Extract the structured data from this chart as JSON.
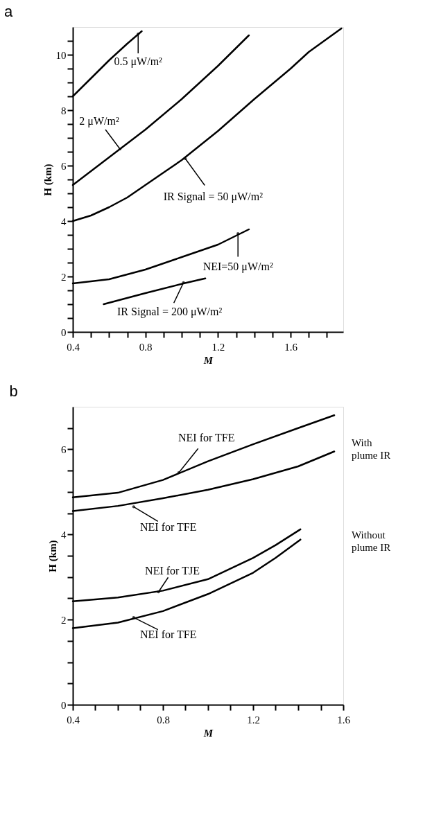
{
  "chart_data": [
    {
      "type": "line",
      "title": "a",
      "xlabel": "M",
      "ylabel": "H (km)",
      "xlim": [
        0.4,
        1.89
      ],
      "ylim": [
        0,
        11
      ],
      "xticks": [
        0.4,
        {
          "value": 0.5,
          "label": null
        },
        {
          "value": 0.6,
          "label": null
        },
        {
          "value": 0.7,
          "label": null
        },
        0.8,
        {
          "value": 0.9,
          "label": null
        },
        {
          "value": 1.0,
          "label": null
        },
        {
          "value": 1.1,
          "label": null
        },
        1.2,
        {
          "value": 1.3,
          "label": null
        },
        {
          "value": 1.4,
          "label": null
        },
        {
          "value": 1.5,
          "label": null
        },
        1.6,
        {
          "value": 1.7,
          "label": null
        },
        {
          "value": 1.8,
          "label": null
        }
      ],
      "yticks": [
        0,
        {
          "value": 0.5,
          "label": null
        },
        {
          "value": 1,
          "label": null
        },
        {
          "value": 1.5,
          "label": null
        },
        2,
        {
          "value": 2.5,
          "label": null
        },
        {
          "value": 3,
          "label": null
        },
        {
          "value": 3.5,
          "label": null
        },
        4,
        {
          "value": 4.5,
          "label": null
        },
        {
          "value": 5,
          "label": null
        },
        {
          "value": 5.5,
          "label": null
        },
        6,
        {
          "value": 6.5,
          "label": null
        },
        {
          "value": 7,
          "label": null
        },
        {
          "value": 7.5,
          "label": null
        },
        8,
        {
          "value": 8.5,
          "label": null
        },
        {
          "value": 9,
          "label": null
        },
        {
          "value": 9.5,
          "label": null
        },
        10,
        {
          "value": 10.5,
          "label": null
        }
      ],
      "grid": false,
      "marker": "none",
      "line_style": "solid",
      "series": [
        {
          "color": "#000000",
          "x": [
            0.4,
            0.5,
            0.6,
            0.7,
            0.78
          ],
          "values": [
            8.5,
            9.15,
            9.8,
            10.4,
            10.85
          ]
        },
        {
          "color": "#000000",
          "x": [
            0.4,
            0.6,
            0.8,
            1.0,
            1.2,
            1.37
          ],
          "values": [
            5.3,
            6.3,
            7.3,
            8.4,
            9.6,
            10.7
          ]
        },
        {
          "color": "#000000",
          "x": [
            0.4,
            0.5,
            0.6,
            0.7,
            0.8,
            0.9,
            1.0,
            1.2,
            1.4,
            1.6,
            1.7,
            1.88
          ],
          "values": [
            4.0,
            4.2,
            4.5,
            4.85,
            5.3,
            5.75,
            6.2,
            7.25,
            8.4,
            9.5,
            10.1,
            10.95
          ]
        },
        {
          "color": "#000000",
          "x": [
            0.4,
            0.6,
            0.8,
            1.0,
            1.2,
            1.37
          ],
          "values": [
            1.75,
            1.9,
            2.25,
            2.7,
            3.15,
            3.7
          ]
        },
        {
          "color": "#000000",
          "x": [
            0.57,
            0.8,
            1.01,
            1.13
          ],
          "values": [
            1.0,
            1.4,
            1.75,
            1.93
          ]
        }
      ],
      "annotations": [
        {
          "text": "0.5 μW/m²",
          "x": 0.76,
          "y": 10.75
        },
        {
          "text": "2 μW/m²",
          "x": 0.66,
          "y": 6.6
        },
        {
          "text": "IR Signal = 50 μW/m²",
          "x": 1.02,
          "y": 6.25
        },
        {
          "text": "NEI=50 μW/m²",
          "x": 1.31,
          "y": 3.55
        },
        {
          "text": "IR Signal = 200 μW/m²",
          "x": 1.01,
          "y": 1.78
        }
      ]
    },
    {
      "type": "line",
      "title": "b",
      "xlabel": "M",
      "ylabel": "H (km)",
      "xlim": [
        0.4,
        1.6
      ],
      "ylim": [
        0,
        7
      ],
      "xticks": [
        0.4,
        {
          "value": 0.5,
          "label": null
        },
        {
          "value": 0.6,
          "label": null
        },
        {
          "value": 0.7,
          "label": null
        },
        0.8,
        {
          "value": 0.9,
          "label": null
        },
        {
          "value": 1.0,
          "label": null
        },
        {
          "value": 1.1,
          "label": null
        },
        1.2,
        {
          "value": 1.3,
          "label": null
        },
        {
          "value": 1.4,
          "label": null
        },
        {
          "value": 1.5,
          "label": null
        },
        1.6
      ],
      "yticks": [
        0,
        {
          "value": 0.5,
          "label": null
        },
        {
          "value": 1,
          "label": null
        },
        {
          "value": 1.5,
          "label": null
        },
        2,
        {
          "value": 2.5,
          "label": null
        },
        {
          "value": 3,
          "label": null
        },
        {
          "value": 3.5,
          "label": null
        },
        4,
        {
          "value": 4.5,
          "label": null
        },
        {
          "value": 5,
          "label": null
        },
        {
          "value": 5.5,
          "label": null
        },
        6,
        {
          "value": 6.5,
          "label": null
        }
      ],
      "grid": false,
      "marker": "none",
      "line_style": "solid",
      "series": [
        {
          "color": "#000000",
          "x": [
            0.4,
            0.6,
            0.8,
            1.0,
            1.2,
            1.4,
            1.56
          ],
          "values": [
            4.87,
            4.98,
            5.28,
            5.72,
            6.12,
            6.5,
            6.8
          ]
        },
        {
          "color": "#000000",
          "x": [
            0.4,
            0.6,
            0.8,
            1.0,
            1.2,
            1.4,
            1.56
          ],
          "values": [
            4.55,
            4.67,
            4.85,
            5.05,
            5.3,
            5.6,
            5.95
          ]
        },
        {
          "color": "#000000",
          "x": [
            0.4,
            0.6,
            0.8,
            1.0,
            1.2,
            1.3,
            1.41
          ],
          "values": [
            2.43,
            2.52,
            2.68,
            2.95,
            3.45,
            3.75,
            4.12
          ]
        },
        {
          "color": "#000000",
          "x": [
            0.4,
            0.6,
            0.8,
            1.0,
            1.2,
            1.3,
            1.41
          ],
          "values": [
            1.8,
            1.93,
            2.2,
            2.6,
            3.1,
            3.45,
            3.88
          ]
        }
      ],
      "annotations": [
        {
          "text": "NEI for TFE",
          "x": 0.87,
          "y": 5.45
        },
        {
          "text": "NEI for TFE",
          "x": 0.67,
          "y": 4.65
        },
        {
          "text": "NEI for TJE",
          "x": 0.78,
          "y": 2.65
        },
        {
          "text": "NEI for TFE",
          "x": 0.67,
          "y": 2.05
        },
        "With plume IR",
        "Without plume IR"
      ]
    }
  ]
}
